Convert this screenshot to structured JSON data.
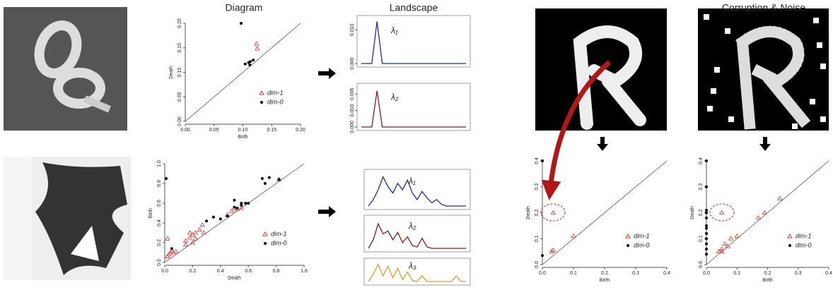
{
  "header": {
    "titles": [
      "Diagram",
      "Landscape",
      "Corruption & Noise"
    ]
  },
  "chart_data": [
    {
      "type": "scatter",
      "xlabel": "Birth",
      "ylabel": "Death",
      "xlim": [
        0,
        0.2
      ],
      "ylim": [
        0,
        0.2
      ],
      "xticks": [
        {
          "value": 0,
          "label": "0.00"
        },
        {
          "value": 0.05,
          "label": "0.05"
        },
        {
          "value": 0.1,
          "label": "0.10"
        },
        {
          "value": 0.15,
          "label": "0.15"
        },
        {
          "value": 0.2,
          "label": "0.20"
        }
      ],
      "yticks": [
        {
          "value": 0,
          "label": "0.00"
        },
        {
          "value": 0.05,
          "label": "0.05"
        },
        {
          "value": 0.1,
          "label": "0.10"
        },
        {
          "value": 0.15,
          "label": "0.15"
        },
        {
          "value": 0.2,
          "label": "0.20"
        }
      ],
      "legend": "lower right",
      "series": [
        {
          "name": "dim-1",
          "color": "#e03030",
          "marker": "triangle",
          "x": [
            0.124,
            0.125
          ],
          "values": [
            0.158,
            0.148
          ]
        },
        {
          "name": "dim-0",
          "color": "#000000",
          "marker": "dot",
          "x": [
            0.097,
            0.11,
            0.113,
            0.118,
            0.112,
            0.104
          ],
          "values": [
            0.2,
            0.12,
            0.122,
            0.125,
            0.115,
            0.117
          ]
        }
      ]
    },
    {
      "type": "line",
      "label": "λ₁",
      "color": "#1f2f8a",
      "xlim": [
        0,
        20
      ],
      "ylim": [
        0,
        0.013
      ],
      "yticks": [
        {
          "value": 0,
          "label": "0.000"
        },
        {
          "value": 0.01,
          "label": "0.010"
        }
      ],
      "x": [
        0,
        1,
        2,
        3,
        4,
        5,
        6,
        7,
        8,
        9,
        10,
        11,
        12,
        13,
        14,
        15,
        16,
        17,
        18,
        19,
        20
      ],
      "values": [
        0,
        0,
        0,
        0.0125,
        0,
        0,
        0,
        0,
        0,
        0,
        0,
        0,
        0,
        0,
        0,
        0,
        0,
        0,
        0,
        0,
        0
      ]
    },
    {
      "type": "line",
      "label": "λ₂",
      "color": "#8b1a1a",
      "xlim": [
        0,
        20
      ],
      "ylim": [
        0,
        0.0072
      ],
      "yticks": [
        {
          "value": 0,
          "label": "0.000"
        },
        {
          "value": 0.003,
          "label": "0.003"
        },
        {
          "value": 0.006,
          "label": "0.006"
        }
      ],
      "x": [
        0,
        1,
        2,
        3,
        4,
        5,
        6,
        7,
        8,
        9,
        10,
        11,
        12,
        13,
        14,
        15,
        16,
        17,
        18,
        19,
        20
      ],
      "values": [
        0,
        0,
        0,
        0.0066,
        0,
        0,
        0,
        0,
        0,
        0,
        0,
        0,
        0,
        0,
        0,
        0,
        0,
        0,
        0,
        0,
        0
      ]
    },
    {
      "type": "scatter",
      "xlabel": "Death",
      "ylabel": "Birth",
      "xlim": [
        0,
        1
      ],
      "ylim": [
        0,
        1
      ],
      "xticks": [
        {
          "value": 0,
          "label": "0.0"
        },
        0.2,
        0.4,
        0.6,
        0.8,
        {
          "value": 1,
          "label": "1.0"
        }
      ],
      "yticks": [
        {
          "value": 0,
          "label": "0.0"
        },
        0.2,
        0.4,
        0.6,
        0.8,
        {
          "value": 1,
          "label": "1.0"
        }
      ],
      "legend": "lower right",
      "series": [
        {
          "name": "dim-1",
          "color": "#e03030",
          "marker": "triangle",
          "x": [
            0.02,
            0.02,
            0.04,
            0.05,
            0.06,
            0.08,
            0.03,
            0.15,
            0.18,
            0.2,
            0.22,
            0.25,
            0.27,
            0.15,
            0.2,
            0.28,
            0.45,
            0.48,
            0.5,
            0.52,
            0.55,
            0.82,
            0.18,
            0.22
          ],
          "values": [
            0.24,
            0.06,
            0.1,
            0.12,
            0.1,
            0.11,
            0.08,
            0.22,
            0.25,
            0.28,
            0.3,
            0.33,
            0.38,
            0.18,
            0.2,
            0.3,
            0.48,
            0.52,
            0.55,
            0.54,
            0.55,
            0.84,
            0.3,
            0.24
          ]
        },
        {
          "name": "dim-0",
          "color": "#000000",
          "marker": "dot",
          "x": [
            0.01,
            0.05,
            0.3,
            0.35,
            0.4,
            0.45,
            0.5,
            0.52,
            0.55,
            0.58,
            0.6,
            0.55,
            0.5,
            0.7,
            0.75,
            0.72,
            0.82
          ],
          "values": [
            0.85,
            0.14,
            0.42,
            0.46,
            0.44,
            0.47,
            0.63,
            0.55,
            0.58,
            0.6,
            0.6,
            0.6,
            0.56,
            0.85,
            0.86,
            0.8,
            0.84
          ]
        }
      ]
    },
    {
      "type": "line",
      "label": "λ₁",
      "color": "#1f2f8a",
      "xlim": [
        0,
        20
      ],
      "ylim": [
        0,
        1
      ],
      "x": [
        0,
        1,
        2,
        3,
        4,
        5,
        6,
        7,
        8,
        9,
        10,
        11,
        12,
        13,
        14,
        15,
        16,
        17,
        18,
        19,
        20
      ],
      "values": [
        0,
        0.2,
        0.5,
        0.9,
        0.6,
        0.4,
        0.7,
        0.5,
        0.8,
        0.4,
        0.2,
        0.45,
        0.25,
        0.1,
        0.2,
        0.05,
        0,
        0,
        0,
        0,
        0
      ]
    },
    {
      "type": "line",
      "label": "λ₂",
      "color": "#8b1a1a",
      "xlim": [
        0,
        20
      ],
      "ylim": [
        0,
        1
      ],
      "x": [
        0,
        1,
        2,
        3,
        4,
        5,
        6,
        7,
        8,
        9,
        10,
        11,
        12,
        13,
        14,
        15,
        16,
        17,
        18,
        19,
        20
      ],
      "values": [
        0,
        0.3,
        0.85,
        0.5,
        0.6,
        0.3,
        0.55,
        0.2,
        0.4,
        0.1,
        0.05,
        0.35,
        0.05,
        0,
        0,
        0,
        0,
        0,
        0,
        0,
        0
      ]
    },
    {
      "type": "line",
      "label": "λ₃",
      "color": "#d4a030",
      "xlim": [
        0,
        20
      ],
      "ylim": [
        0,
        1
      ],
      "x": [
        0,
        1,
        2,
        3,
        4,
        5,
        6,
        7,
        8,
        9,
        10,
        11,
        12,
        13,
        14,
        15,
        16,
        17,
        18,
        19,
        20
      ],
      "values": [
        0,
        0.4,
        0.9,
        0.3,
        0.8,
        0.2,
        0.7,
        0.1,
        0.5,
        0.05,
        0,
        0.3,
        0,
        0,
        0,
        0,
        0,
        0,
        0.3,
        0,
        0
      ]
    },
    {
      "type": "scatter",
      "xlabel": "Birth",
      "ylabel": "Death",
      "xlim": [
        0,
        0.4
      ],
      "ylim": [
        0,
        0.4
      ],
      "xticks": [
        {
          "value": 0,
          "label": "0.0"
        },
        0.1,
        0.2,
        0.3,
        0.4
      ],
      "yticks": [
        {
          "value": 0,
          "label": "0.0"
        },
        0.1,
        0.2,
        0.3,
        0.4
      ],
      "legend": "lower right",
      "series": [
        {
          "name": "dim-1",
          "color": "#e03030",
          "marker": "triangle",
          "x": [
            0.035,
            0.03,
            0.035,
            0.1
          ],
          "values": [
            0.2,
            0.05,
            0.055,
            0.11
          ]
        },
        {
          "name": "dim-0",
          "color": "#000000",
          "marker": "dot",
          "x": [
            0,
            0
          ],
          "values": [
            0.4,
            0.035
          ]
        }
      ]
    },
    {
      "type": "scatter",
      "xlabel": "Birth",
      "ylabel": "Death",
      "xlim": [
        0,
        0.4
      ],
      "ylim": [
        0,
        0.4
      ],
      "xticks": [
        {
          "value": 0,
          "label": "0.0"
        },
        0.1,
        0.2,
        0.3,
        0.4
      ],
      "yticks": [
        {
          "value": 0,
          "label": "0.0"
        },
        0.1,
        0.2,
        0.3,
        0.4
      ],
      "legend": "lower right",
      "series": [
        {
          "name": "dim-1",
          "color": "#e03030",
          "marker": "triangle",
          "x": [
            0.05,
            0.04,
            0.05,
            0.06,
            0.08,
            0.1,
            0.07,
            0.17,
            0.19,
            0.24,
            0.05
          ],
          "values": [
            0.2,
            0.05,
            0.06,
            0.08,
            0.1,
            0.11,
            0.07,
            0.18,
            0.2,
            0.255,
            0.05
          ]
        },
        {
          "name": "dim-0",
          "color": "#000000",
          "marker": "dot",
          "x": [
            0,
            0,
            0,
            0,
            0,
            0,
            0,
            0,
            0,
            0,
            0,
            0
          ],
          "values": [
            0.4,
            0.3,
            0.21,
            0.2,
            0.18,
            0.15,
            0.14,
            0.12,
            0.1,
            0.08,
            0.06,
            0.04
          ]
        }
      ]
    }
  ]
}
